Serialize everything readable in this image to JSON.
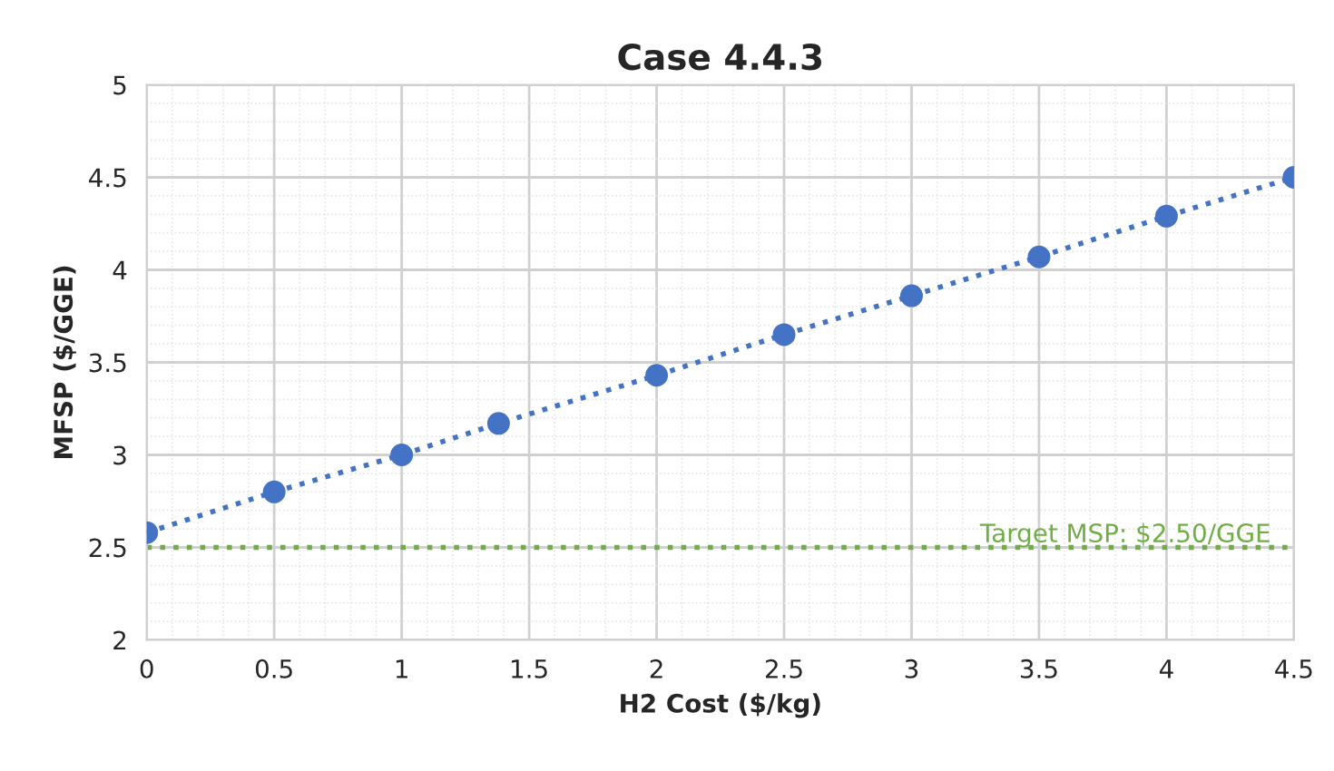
{
  "chart_data": {
    "type": "line",
    "title": "Case 4.4.3",
    "xlabel": "H2 Cost ($/kg)",
    "ylabel": "MFSP ($/GGE)",
    "x": [
      0,
      0.5,
      1,
      1.38,
      2,
      2.5,
      3,
      3.5,
      4,
      4.5
    ],
    "series": [
      {
        "color": "#4472c4",
        "values": [
          2.58,
          2.8,
          3.0,
          3.17,
          3.43,
          3.65,
          3.86,
          4.07,
          4.29,
          4.5
        ]
      }
    ],
    "xlim": [
      0,
      4.5
    ],
    "xticks": [
      0,
      0.5,
      1,
      1.5,
      2,
      2.5,
      3,
      3.5,
      4,
      4.5
    ],
    "ylim": [
      2,
      5
    ],
    "yticks": [
      2,
      2.5,
      3,
      3.5,
      4,
      4.5,
      5
    ],
    "ref_lines": [
      {
        "axis": "y",
        "value": 2.5,
        "label": "Target MSP: $2.50/GGE",
        "color": "#70ad47",
        "line_style": "dotted"
      }
    ],
    "grid": true,
    "marker": "circle",
    "line_style": "dotted"
  }
}
